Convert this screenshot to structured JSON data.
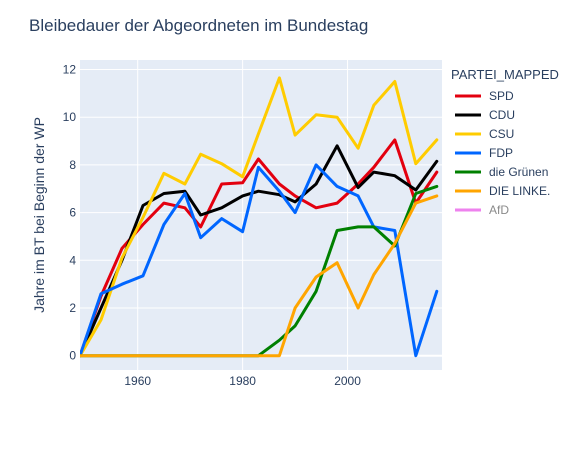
{
  "chart_data": {
    "type": "line",
    "title": "Bleibedauer der Abgeordneten im Bundestag",
    "xlabel": "",
    "ylabel": "Jahre im BT bei Beginn der WP",
    "xlim": [
      1949,
      2018
    ],
    "ylim": [
      -0.6,
      12.4
    ],
    "x_ticks": [
      1960,
      1980,
      2000
    ],
    "y_ticks": [
      0,
      2,
      4,
      6,
      8,
      10,
      12
    ],
    "grid": true,
    "legend_title": "PARTEI_MAPPED",
    "legend_position": "top-right",
    "series": [
      {
        "name": "SPD",
        "color": "#e3000f",
        "x": [
          1949,
          1953,
          1957,
          1961,
          1965,
          1969,
          1972,
          1976,
          1980,
          1983,
          1987,
          1990,
          1994,
          1998,
          2002,
          2005,
          2009,
          2013,
          2017
        ],
        "y": [
          0.0,
          2.5,
          4.5,
          5.5,
          6.4,
          6.2,
          5.4,
          7.2,
          7.25,
          8.25,
          7.2,
          6.7,
          6.2,
          6.4,
          7.2,
          7.9,
          9.05,
          6.4,
          7.7
        ]
      },
      {
        "name": "CDU",
        "color": "#000000",
        "x": [
          1949,
          1953,
          1957,
          1961,
          1965,
          1969,
          1972,
          1976,
          1980,
          1983,
          1987,
          1990,
          1994,
          1998,
          2002,
          2005,
          2009,
          2013,
          2017
        ],
        "y": [
          0.0,
          2.0,
          4.0,
          6.3,
          6.8,
          6.9,
          5.9,
          6.2,
          6.7,
          6.9,
          6.75,
          6.45,
          7.2,
          8.8,
          7.05,
          7.7,
          7.55,
          6.95,
          8.15
        ]
      },
      {
        "name": "CSU",
        "color": "#ffcc00",
        "x": [
          1949,
          1953,
          1957,
          1961,
          1965,
          1969,
          1972,
          1976,
          1980,
          1983,
          1987,
          1990,
          1994,
          1998,
          2002,
          2005,
          2009,
          2013,
          2017
        ],
        "y": [
          0.0,
          1.5,
          4.1,
          5.8,
          7.65,
          7.2,
          8.45,
          8.05,
          7.5,
          9.3,
          11.65,
          9.25,
          10.1,
          10.0,
          8.7,
          10.5,
          11.5,
          8.05,
          9.05
        ]
      },
      {
        "name": "FDP",
        "color": "#0066ff",
        "x": [
          1949,
          1953,
          1957,
          1961,
          1965,
          1969,
          1972,
          1976,
          1980,
          1983,
          1987,
          1990,
          1994,
          1998,
          2002,
          2005,
          2009,
          2013,
          2017
        ],
        "y": [
          0.0,
          2.6,
          3.0,
          3.35,
          5.5,
          6.8,
          4.95,
          5.75,
          5.2,
          7.9,
          6.9,
          6.0,
          8.0,
          7.1,
          6.7,
          5.4,
          5.25,
          0.0,
          2.7
        ]
      },
      {
        "name": "die Grünen",
        "color": "#008000",
        "x": [
          1949,
          1983,
          1987,
          1990,
          1994,
          1998,
          2002,
          2005,
          2009,
          2013,
          2017
        ],
        "y": [
          0.0,
          0.0,
          0.65,
          1.25,
          2.7,
          5.25,
          5.4,
          5.4,
          4.6,
          6.8,
          7.1
        ]
      },
      {
        "name": "DIE LINKE.",
        "color": "#ffa500",
        "x": [
          1949,
          1983,
          1987,
          1990,
          1994,
          1998,
          2002,
          2005,
          2009,
          2013,
          2017
        ],
        "y": [
          0.0,
          0.0,
          0.0,
          2.0,
          3.3,
          3.9,
          2.0,
          3.4,
          4.7,
          6.4,
          6.7
        ]
      },
      {
        "name": "AfD",
        "color": "#ee82ee",
        "x": [],
        "y": []
      }
    ]
  }
}
